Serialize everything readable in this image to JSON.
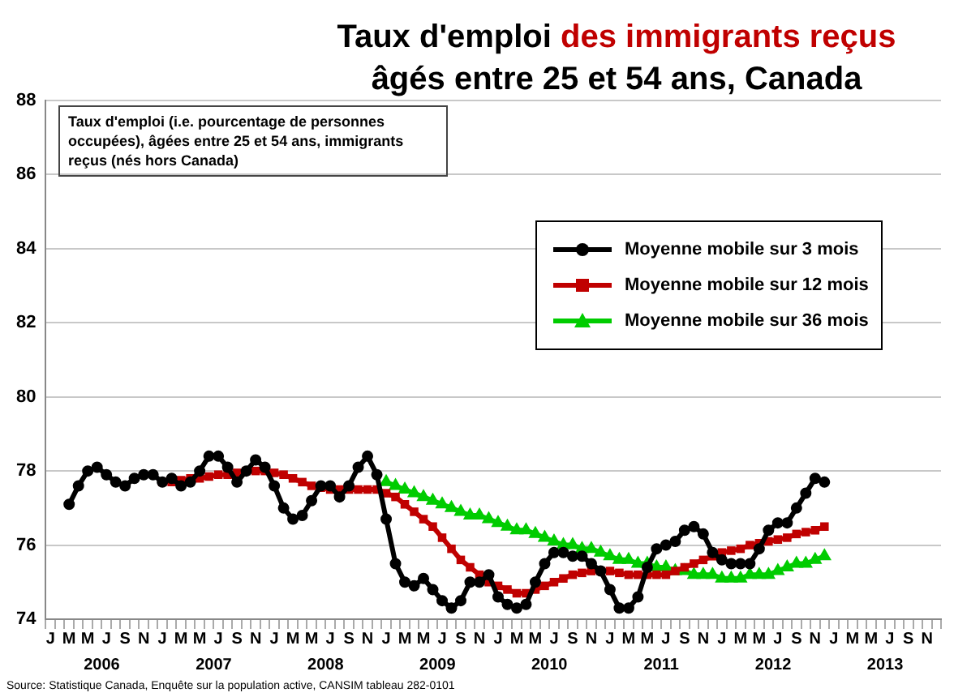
{
  "chart_data": {
    "type": "line",
    "title": "Taux d'emploi des immigrants reçus",
    "subtitle": "âgés entre 25 et 54 ans, Canada",
    "categories": [
      "J",
      null,
      "M",
      null,
      "M",
      null,
      "J",
      null,
      "S",
      null,
      "N",
      null,
      "J",
      null,
      "M",
      null,
      "M",
      null,
      "J",
      null,
      "S",
      null,
      "N",
      null,
      "J",
      null,
      "M",
      null,
      "M",
      null,
      "J",
      null,
      "S",
      null,
      "N",
      null,
      "J",
      null,
      "M",
      null,
      "M",
      null,
      "J",
      null,
      "S",
      null,
      "N",
      null,
      "J",
      null,
      "M",
      null,
      "M",
      null,
      "J",
      null,
      "S",
      null,
      "N",
      null,
      "J",
      null,
      "M",
      null,
      "M",
      null,
      "J",
      null,
      "S",
      null,
      "N",
      null,
      "J",
      null,
      "M",
      null,
      "M",
      null,
      "J",
      null,
      "S",
      null,
      "N",
      null,
      "J",
      null,
      "M",
      null,
      "M",
      null,
      "J",
      null,
      "S",
      null,
      "N",
      null
    ],
    "series": [
      {
        "name": "Moyenne mobile sur 3 mois",
        "color": "#000000",
        "marker": "circle",
        "values": [
          null,
          null,
          77.1,
          77.6,
          78.0,
          78.1,
          77.9,
          77.7,
          77.6,
          77.8,
          77.9,
          77.9,
          77.7,
          77.8,
          77.6,
          77.7,
          78.0,
          78.4,
          78.4,
          78.1,
          77.7,
          78.0,
          78.3,
          78.1,
          77.6,
          77.0,
          76.7,
          76.8,
          77.2,
          77.6,
          77.6,
          77.3,
          77.6,
          78.1,
          78.4,
          77.9,
          76.7,
          75.5,
          75.0,
          74.9,
          75.1,
          74.8,
          74.5,
          74.3,
          74.5,
          75.0,
          75.0,
          75.2,
          74.6,
          74.4,
          74.3,
          74.4,
          75.0,
          75.5,
          75.8,
          75.8,
          75.7,
          75.7,
          75.5,
          75.3,
          74.8,
          74.3,
          74.3,
          74.6,
          75.4,
          75.9,
          76.0,
          76.1,
          76.4,
          76.5,
          76.3,
          75.8,
          75.6,
          75.5,
          75.5,
          75.5,
          75.9,
          76.4,
          76.6,
          76.6,
          77.0,
          77.4,
          77.8,
          77.7,
          null,
          null,
          null,
          null,
          null,
          null,
          null,
          null,
          null,
          null,
          null,
          null
        ]
      },
      {
        "name": "Moyenne mobile sur 12 mois",
        "color": "#c00000",
        "marker": "square",
        "values": [
          null,
          null,
          null,
          null,
          null,
          null,
          null,
          null,
          null,
          null,
          null,
          null,
          77.7,
          77.7,
          77.75,
          77.8,
          77.8,
          77.85,
          77.9,
          77.9,
          77.95,
          78.0,
          78.0,
          78.0,
          77.95,
          77.9,
          77.8,
          77.7,
          77.6,
          77.55,
          77.5,
          77.5,
          77.5,
          77.5,
          77.5,
          77.5,
          77.4,
          77.3,
          77.1,
          76.9,
          76.7,
          76.5,
          76.2,
          75.9,
          75.6,
          75.4,
          75.2,
          75.0,
          74.9,
          74.8,
          74.7,
          74.7,
          74.8,
          74.9,
          75.0,
          75.1,
          75.2,
          75.25,
          75.3,
          75.3,
          75.3,
          75.25,
          75.2,
          75.2,
          75.2,
          75.2,
          75.2,
          75.3,
          75.4,
          75.5,
          75.6,
          75.7,
          75.8,
          75.85,
          75.9,
          76.0,
          76.05,
          76.1,
          76.15,
          76.2,
          76.3,
          76.35,
          76.4,
          76.5,
          null,
          null,
          null,
          null,
          null,
          null,
          null,
          null,
          null,
          null,
          null,
          null
        ]
      },
      {
        "name": "Moyenne mobile sur 36 mois",
        "color": "#00cc00",
        "marker": "triangle",
        "values": [
          null,
          null,
          null,
          null,
          null,
          null,
          null,
          null,
          null,
          null,
          null,
          null,
          null,
          null,
          null,
          null,
          null,
          null,
          null,
          null,
          null,
          null,
          null,
          null,
          null,
          null,
          null,
          null,
          null,
          null,
          null,
          null,
          null,
          null,
          null,
          null,
          77.7,
          77.6,
          77.5,
          77.4,
          77.3,
          77.2,
          77.1,
          77.0,
          76.9,
          76.8,
          76.8,
          76.7,
          76.6,
          76.5,
          76.4,
          76.4,
          76.3,
          76.2,
          76.1,
          76.0,
          76.0,
          75.9,
          75.9,
          75.8,
          75.7,
          75.6,
          75.6,
          75.5,
          75.5,
          75.4,
          75.4,
          75.3,
          75.3,
          75.2,
          75.2,
          75.2,
          75.1,
          75.1,
          75.1,
          75.2,
          75.2,
          75.2,
          75.3,
          75.4,
          75.5,
          75.5,
          75.6,
          75.7,
          null,
          null,
          null,
          null,
          null,
          null,
          null,
          null,
          null,
          null,
          null,
          null
        ]
      }
    ],
    "ylim": [
      74,
      88
    ],
    "yticks": [
      74,
      76,
      78,
      80,
      82,
      84,
      86,
      88
    ],
    "grid": "y",
    "legend": "right",
    "line_style": "solid",
    "annotations": [
      "Taux d'emploi (i.e. pourcentage de personnes occupées), âgées entre 25 et 54 ans, immigrants reçus (nés hors Canada)",
      "2006",
      "2007",
      "2008",
      "2009",
      "2010",
      "2011",
      "2012",
      "2013",
      "Source: Statistique Canada, Enquête sur la population active, CANSIM tableau 282-0101"
    ]
  }
}
